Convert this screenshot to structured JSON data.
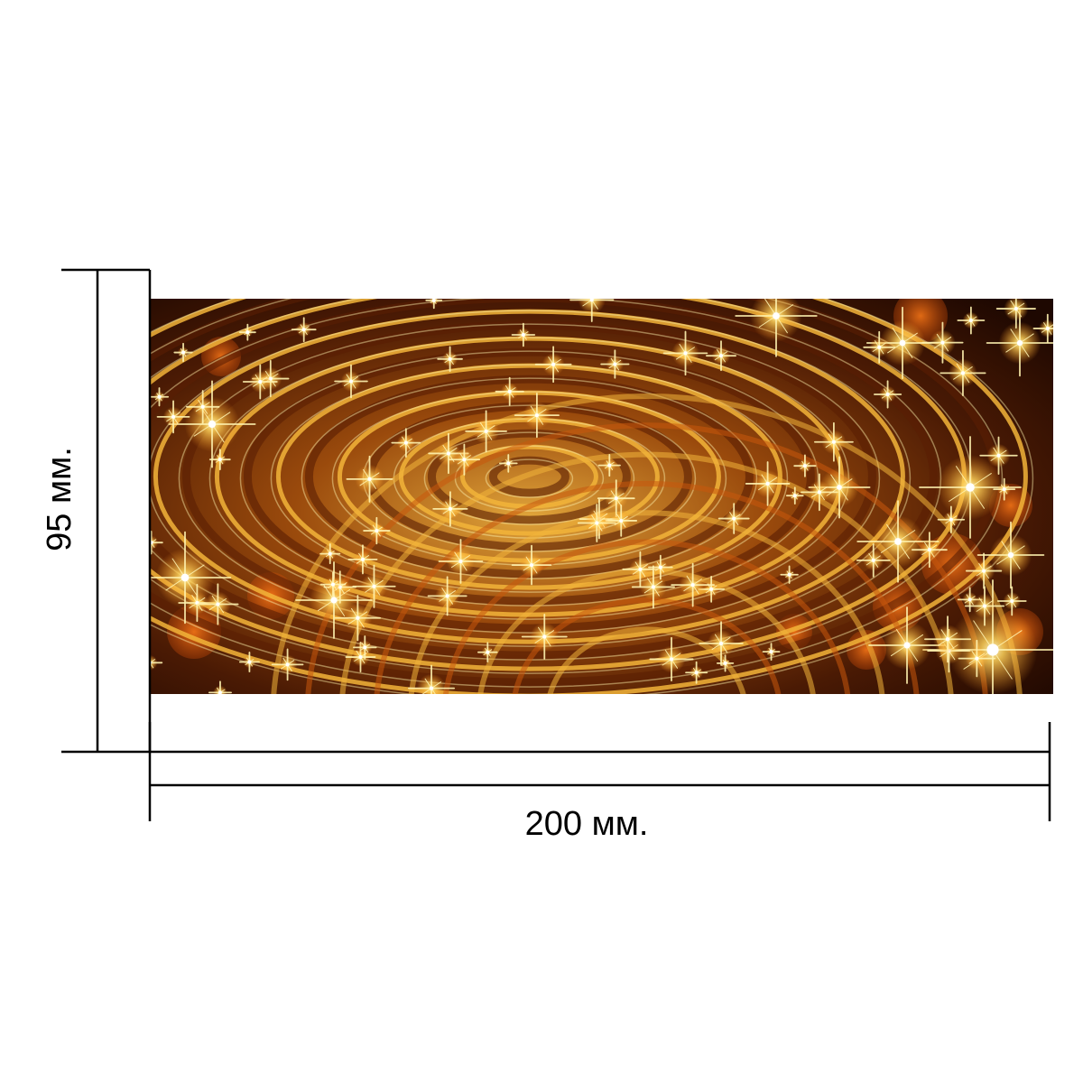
{
  "dimensions": {
    "height_label": "95 мм.",
    "width_label": "200 мм."
  },
  "artwork": {
    "subject": "golden-water-ripple-with-sparkles",
    "colors": {
      "base": "#2a0f02",
      "deep": "#5a1e04",
      "amber": "#c8570c",
      "gold": "#f2b43a",
      "highlight": "#fff3b0"
    }
  },
  "line_color": "#000000"
}
